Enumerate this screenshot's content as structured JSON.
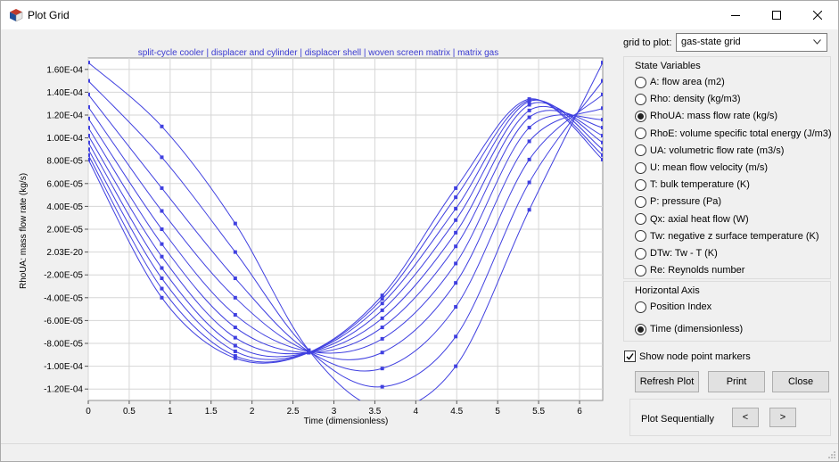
{
  "window": {
    "title": "Plot Grid"
  },
  "plot": {
    "header": "split-cycle cooler | displacer and cylinder | displacer shell | woven screen matrix | matrix gas",
    "ylabel": "RhoUA: mass flow rate (kg/s)",
    "xlabel": "Time (dimensionless)",
    "line_color": "#4040e0"
  },
  "chart_data": {
    "type": "line",
    "title": "split-cycle cooler | displacer and cylinder | displacer shell | woven screen matrix | matrix gas",
    "xlabel": "Time (dimensionless)",
    "ylabel": "RhoUA: mass flow rate (kg/s)",
    "xlim": [
      0,
      6.283
    ],
    "ylim": [
      -0.00013,
      0.00017
    ],
    "x_ticks": [
      "0",
      "0.5",
      "1",
      "1.5",
      "2",
      "2.5",
      "3",
      "3.5",
      "4",
      "4.5",
      "5",
      "5.5",
      "6"
    ],
    "x_tick_values": [
      0,
      0.5,
      1,
      1.5,
      2,
      2.5,
      3,
      3.5,
      4,
      4.5,
      5,
      5.5,
      6
    ],
    "y_ticks": [
      "1.60E-04",
      "1.40E-04",
      "1.20E-04",
      "1.00E-04",
      "8.00E-05",
      "6.00E-05",
      "4.00E-05",
      "2.00E-05",
      "2.03E-20",
      "-2.00E-05",
      "-4.00E-05",
      "-6.00E-05",
      "-8.00E-05",
      "-1.00E-04",
      "-1.20E-04"
    ],
    "y_tick_values": [
      0.00016,
      0.00014,
      0.00012,
      0.0001,
      8e-05,
      6e-05,
      4e-05,
      2e-05,
      0,
      -2e-05,
      -4e-05,
      -6e-05,
      -8e-05,
      -0.0001,
      -0.00012
    ],
    "grid": true,
    "marker_x": [
      0,
      0.898,
      1.795,
      2.693,
      3.59,
      4.488,
      5.386,
      6.283
    ],
    "series": [
      {
        "values": [
          0.000166,
          0.00011,
          2.5e-05,
          -8.6e-05,
          -0.000137,
          -0.0001,
          3.7e-05,
          0.000166
        ]
      },
      {
        "values": [
          0.00015,
          8.3e-05,
          0.0,
          -8.6e-05,
          -0.000118,
          -7.4e-05,
          6.1e-05,
          0.00015
        ]
      },
      {
        "values": [
          0.000138,
          5.6e-05,
          -2.3e-05,
          -8.7e-05,
          -0.000102,
          -4.8e-05,
          8.1e-05,
          0.000138
        ]
      },
      {
        "values": [
          0.000127,
          3.6e-05,
          -4e-05,
          -8.7e-05,
          -8.8e-05,
          -2.7e-05,
          9.7e-05,
          0.000126
        ]
      },
      {
        "values": [
          0.000117,
          2e-05,
          -5.5e-05,
          -8.7e-05,
          -7.6e-05,
          -1e-05,
          0.000109,
          0.000116
        ]
      },
      {
        "values": [
          0.000109,
          7e-06,
          -6.6e-05,
          -8.8e-05,
          -6.6e-05,
          5e-06,
          0.000118,
          0.000109
        ]
      },
      {
        "values": [
          0.000102,
          -4e-06,
          -7.5e-05,
          -8.8e-05,
          -5.8e-05,
          1.7e-05,
          0.000124,
          0.000102
        ]
      },
      {
        "values": [
          9.6e-05,
          -1.4e-05,
          -8.2e-05,
          -8.8e-05,
          -5.1e-05,
          2.8e-05,
          0.000129,
          9.6e-05
        ]
      },
      {
        "values": [
          9e-05,
          -2.3e-05,
          -8.7e-05,
          -8.8e-05,
          -4.5e-05,
          3.8e-05,
          0.000132,
          9e-05
        ]
      },
      {
        "values": [
          8.5e-05,
          -3.2e-05,
          -9.1e-05,
          -8.8e-05,
          -4.1e-05,
          4.8e-05,
          0.000133,
          8.5e-05
        ]
      },
      {
        "values": [
          8.1e-05,
          -4e-05,
          -9.3e-05,
          -8.8e-05,
          -3.8e-05,
          5.6e-05,
          0.000134,
          8.1e-05
        ]
      }
    ]
  },
  "controls": {
    "grid_label": "grid to plot:",
    "grid_value": "gas-state grid",
    "state_title": "State Variables",
    "state_items": [
      "A: flow area (m2)",
      "Rho: density (kg/m3)",
      "RhoUA: mass flow rate (kg/s)",
      "RhoE: volume specific total energy (J/m3)",
      "UA: volumetric flow rate (m3/s)",
      "U: mean flow velocity (m/s)",
      "T: bulk temperature (K)",
      "P: pressure (Pa)",
      "Qx: axial heat flow (W)",
      "Tw: negative z surface temperature (K)",
      "DTw: Tw - T (K)",
      "Re: Reynolds number"
    ],
    "state_selected": 2,
    "haxis_title": "Horizontal Axis",
    "haxis_items": [
      "Position Index",
      "Time (dimensionless)"
    ],
    "haxis_selected": 1,
    "show_markers_label": "Show node point markers",
    "show_markers": true,
    "refresh_label": "Refresh Plot",
    "print_label": "Print",
    "close_label": "Close",
    "sequential_label": "Plot Sequentially",
    "prev_label": "<",
    "next_label": ">"
  }
}
